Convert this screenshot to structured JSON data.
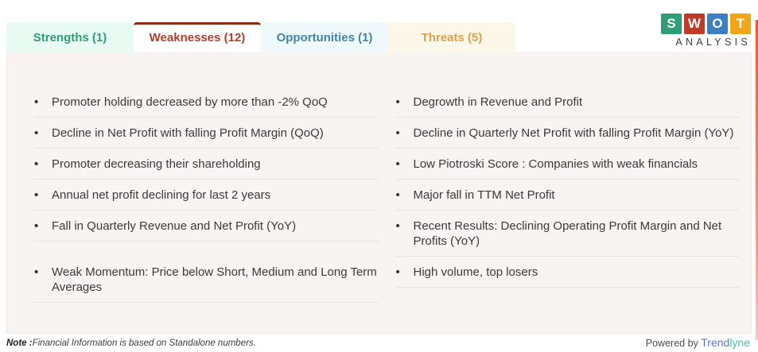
{
  "tabs": [
    {
      "label": "Strengths (1)",
      "color": "#2f9d78",
      "bg": "#e7fbf2",
      "topbar": "transparent"
    },
    {
      "label": "Weaknesses (12)",
      "color": "#b23c2a",
      "bg": "#ffffff",
      "topbar": "#8e2914"
    },
    {
      "label": "Opportunities (1)",
      "color": "#4383aa",
      "bg": "#eff8fb",
      "topbar": "transparent"
    },
    {
      "label": "Threats (5)",
      "color": "#dfa04b",
      "bg": "#fdf7e9",
      "topbar": "transparent"
    }
  ],
  "logo": {
    "letters": [
      {
        "char": "S",
        "color": "#2f9d77"
      },
      {
        "char": "W",
        "color": "#c03a28"
      },
      {
        "char": "O",
        "color": "#3d7fc1"
      },
      {
        "char": "T",
        "color": "#f2a516"
      }
    ],
    "subtitle": "ANALYSIS"
  },
  "rows": [
    {
      "left": "Promoter holding decreased by more than -2% QoQ",
      "right": "Degrowth in Revenue and Profit"
    },
    {
      "left": "Decline in Net Profit with falling Profit Margin (QoQ)",
      "right": "Decline in Quarterly Net Profit with falling Profit Margin (YoY)"
    },
    {
      "left": "Promoter decreasing their shareholding",
      "right": "Low Piotroski Score : Companies with weak financials"
    },
    {
      "left": "Annual net profit declining for last 2 years",
      "right": "Major fall in TTM Net Profit"
    },
    {
      "left": "Fall in Quarterly Revenue and Net Profit (YoY)",
      "right": "Recent Results: Declining Operating Profit Margin and Net Profits (YoY)"
    },
    {
      "left": "Weak Momentum: Price below Short, Medium and Long Term Averages",
      "right": "High volume, top losers"
    }
  ],
  "bullet_glyph": "•",
  "footer": {
    "note_label": "Note :",
    "note_text": "Financial Information is based on Standalone numbers.",
    "powered_by": "Powered by ",
    "brand_part1": "Trend",
    "brand_part2": "lyne",
    "brand_color1": "#4a7bd4",
    "brand_color2": "#3fc39e"
  },
  "colors": {
    "panel_bg": "#f7f4f1",
    "item_text": "#3a3a3a",
    "divider": "#e8e3de",
    "edge_line": "#e2572e"
  }
}
